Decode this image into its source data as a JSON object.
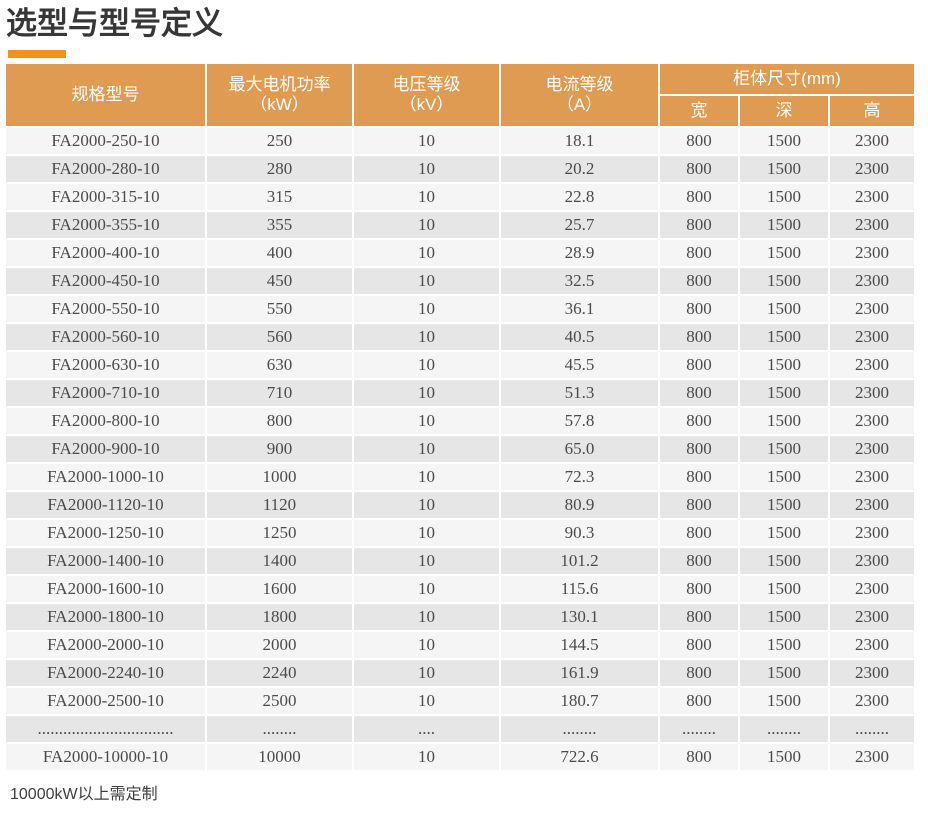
{
  "page": {
    "title": "选型与型号定义",
    "footnote": "10000kW以上需定制"
  },
  "colors": {
    "header_orange": "#DF9B51",
    "accent_orange": "#EF921E",
    "row_light": "#F5F5F5",
    "row_dark": "#E6E6E6",
    "title_text": "#373737",
    "cell_text": "#4A4A4A",
    "header_text": "#FFFFFF"
  },
  "table": {
    "headers": {
      "model": "规格型号",
      "power_label": "最大电机功率",
      "power_unit": "（kW）",
      "voltage_label": "电压等级",
      "voltage_unit": "（kV）",
      "current_label": "电流等级",
      "current_unit": "（A）",
      "cabinet_group": "柜体尺寸(mm)",
      "width": "宽",
      "depth": "深",
      "height": "高"
    },
    "rows": [
      [
        "FA2000-250-10",
        "250",
        "10",
        "18.1",
        "800",
        "1500",
        "2300"
      ],
      [
        "FA2000-280-10",
        "280",
        "10",
        "20.2",
        "800",
        "1500",
        "2300"
      ],
      [
        "FA2000-315-10",
        "315",
        "10",
        "22.8",
        "800",
        "1500",
        "2300"
      ],
      [
        "FA2000-355-10",
        "355",
        "10",
        "25.7",
        "800",
        "1500",
        "2300"
      ],
      [
        "FA2000-400-10",
        "400",
        "10",
        "28.9",
        "800",
        "1500",
        "2300"
      ],
      [
        "FA2000-450-10",
        "450",
        "10",
        "32.5",
        "800",
        "1500",
        "2300"
      ],
      [
        "FA2000-550-10",
        "550",
        "10",
        "36.1",
        "800",
        "1500",
        "2300"
      ],
      [
        "FA2000-560-10",
        "560",
        "10",
        "40.5",
        "800",
        "1500",
        "2300"
      ],
      [
        "FA2000-630-10",
        "630",
        "10",
        "45.5",
        "800",
        "1500",
        "2300"
      ],
      [
        "FA2000-710-10",
        "710",
        "10",
        "51.3",
        "800",
        "1500",
        "2300"
      ],
      [
        "FA2000-800-10",
        "800",
        "10",
        "57.8",
        "800",
        "1500",
        "2300"
      ],
      [
        "FA2000-900-10",
        "900",
        "10",
        "65.0",
        "800",
        "1500",
        "2300"
      ],
      [
        "FA2000-1000-10",
        "1000",
        "10",
        "72.3",
        "800",
        "1500",
        "2300"
      ],
      [
        "FA2000-1120-10",
        "1120",
        "10",
        "80.9",
        "800",
        "1500",
        "2300"
      ],
      [
        "FA2000-1250-10",
        "1250",
        "10",
        "90.3",
        "800",
        "1500",
        "2300"
      ],
      [
        "FA2000-1400-10",
        "1400",
        "10",
        "101.2",
        "800",
        "1500",
        "2300"
      ],
      [
        "FA2000-1600-10",
        "1600",
        "10",
        "115.6",
        "800",
        "1500",
        "2300"
      ],
      [
        "FA2000-1800-10",
        "1800",
        "10",
        "130.1",
        "800",
        "1500",
        "2300"
      ],
      [
        "FA2000-2000-10",
        "2000",
        "10",
        "144.5",
        "800",
        "1500",
        "2300"
      ],
      [
        "FA2000-2240-10",
        "2240",
        "10",
        "161.9",
        "800",
        "1500",
        "2300"
      ],
      [
        "FA2000-2500-10",
        "2500",
        "10",
        "180.7",
        "800",
        "1500",
        "2300"
      ],
      [
        "................................",
        "........",
        "....",
        "........",
        "........",
        "........",
        "........"
      ],
      [
        "FA2000-10000-10",
        "10000",
        "10",
        "722.6",
        "800",
        "1500",
        "2300"
      ]
    ]
  }
}
